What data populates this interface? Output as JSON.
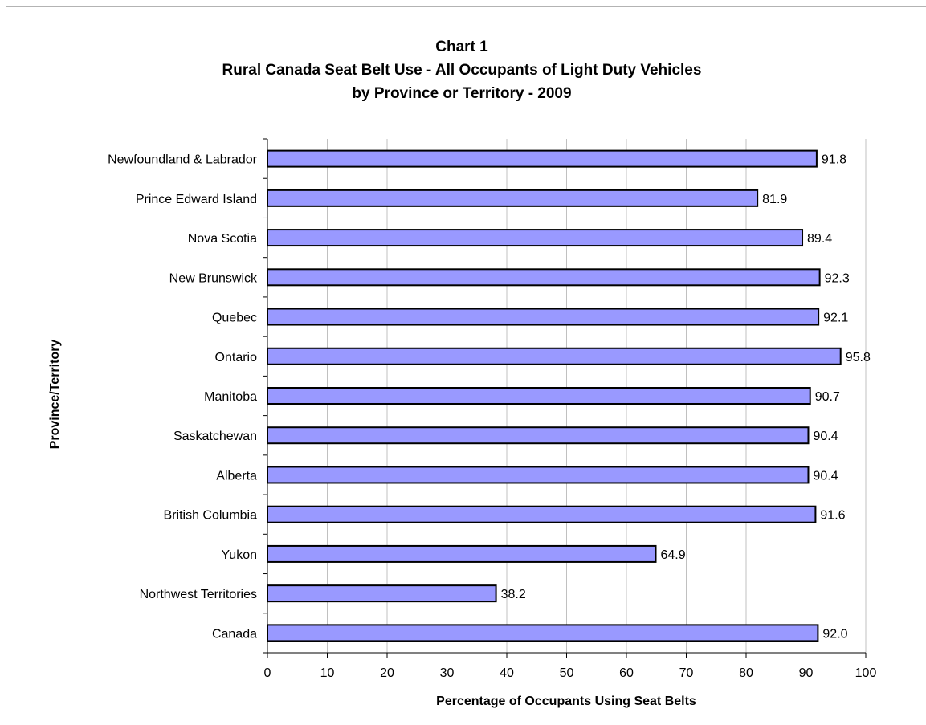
{
  "chart_data": {
    "type": "bar",
    "orientation": "horizontal",
    "title_lines": [
      "Chart 1",
      "Rural Canada Seat Belt Use - All Occupants of Light Duty Vehicles",
      "by Province or Territory - 2009"
    ],
    "xlabel": "Percentage of Occupants Using Seat Belts",
    "ylabel": "Province/Territory",
    "xlim": [
      0,
      100
    ],
    "xticks": [
      "0",
      "10",
      "20",
      "30",
      "40",
      "50",
      "60",
      "70",
      "80",
      "90",
      "100"
    ],
    "grid": "vertical",
    "categories": [
      "Newfoundland & Labrador",
      "Prince Edward Island",
      "Nova Scotia",
      "New Brunswick",
      "Quebec",
      "Ontario",
      "Manitoba",
      "Saskatchewan",
      "Alberta",
      "British Columbia",
      "Yukon",
      "Northwest Territories",
      "Canada"
    ],
    "values": [
      91.8,
      81.9,
      89.4,
      92.3,
      92.1,
      95.8,
      90.7,
      90.4,
      90.4,
      91.6,
      64.9,
      38.2,
      92.0
    ],
    "value_labels": [
      "91.8",
      "81.9",
      "89.4",
      "92.3",
      "92.1",
      "95.8",
      "90.7",
      "90.4",
      "90.4",
      "91.6",
      "64.9",
      "38.2",
      "92.0"
    ],
    "bar_color": "#9999ff",
    "bar_edge_color": "#000000",
    "grid_color": "#c0c0c0"
  }
}
